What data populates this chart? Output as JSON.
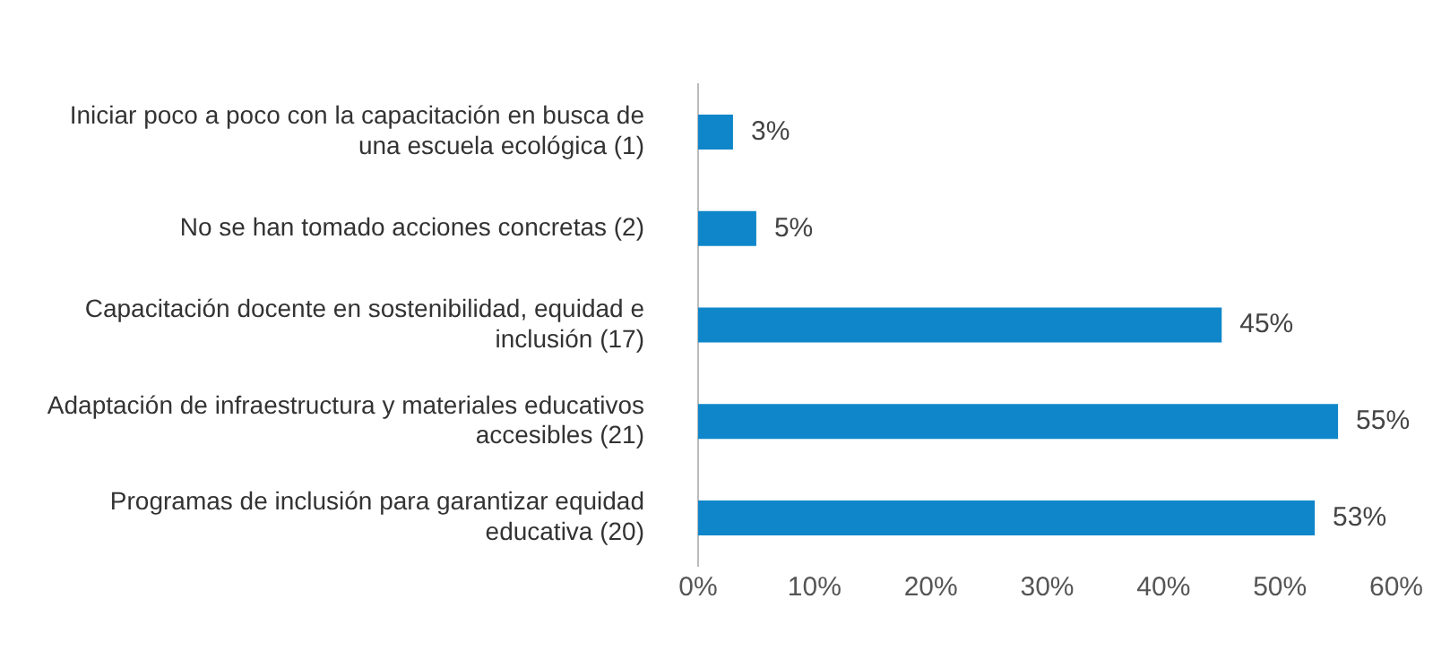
{
  "chart_data": {
    "type": "bar",
    "orientation": "horizontal",
    "categories": [
      "Iniciar poco a poco con la capacitación en busca de una escuela ecológica (1)",
      "No se han tomado acciones concretas (2)",
      "Capacitación docente en sostenibilidad, equidad e inclusión (17)",
      "Adaptación de infraestructura y materiales educativos accesibles (21)",
      "Programas de inclusión para garantizar equidad educativa (20)"
    ],
    "values": [
      3,
      5,
      45,
      55,
      53
    ],
    "value_labels": [
      "3%",
      "5%",
      "45%",
      "55%",
      "53%"
    ],
    "color": "#0f86c9",
    "xlim": [
      0,
      60
    ],
    "xticks": [
      {
        "value": 0,
        "label": "0%"
      },
      {
        "value": 10,
        "label": "10%"
      },
      {
        "value": 20,
        "label": "20%"
      },
      {
        "value": 30,
        "label": "30%"
      },
      {
        "value": 40,
        "label": "40%"
      },
      {
        "value": 50,
        "label": "50%"
      },
      {
        "value": 60,
        "label": "60%"
      }
    ],
    "grid": false,
    "legend": false
  }
}
